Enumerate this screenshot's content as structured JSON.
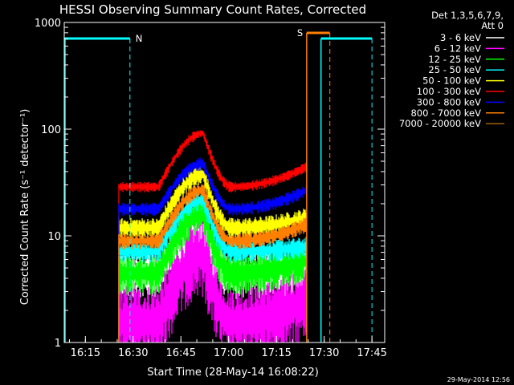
{
  "chart_data": {
    "type": "line",
    "title": "HESSI Observing Summary Count Rates, Corrected",
    "xlabel": "Start Time (28-May-14 16:08:22)",
    "ylabel": "Corrected Count Rate (s⁻¹ detector⁻¹)",
    "yscale": "log",
    "ylim": [
      1,
      1000
    ],
    "xlim": [
      "16:08:22",
      "17:49:00"
    ],
    "x_ticks": [
      "16:15",
      "16:30",
      "16:45",
      "17:00",
      "17:15",
      "17:30",
      "17:45"
    ],
    "y_ticks": [
      "1",
      "10",
      "100",
      "1000"
    ],
    "legend_header": [
      "Det 1,3,5,6,7,9,",
      "Att 0"
    ],
    "legend_position": "right, outside plot",
    "series": [
      {
        "name": "3 - 6 keV",
        "color": "#ffffff",
        "base": 4.5,
        "peak": 10.5,
        "end": 5.0,
        "noise": 0.18
      },
      {
        "name": "6 - 12 keV",
        "color": "#ff00ff",
        "base": 1.6,
        "peak": 7.0,
        "end": 2.6,
        "noise": 0.3
      },
      {
        "name": "12 - 25 keV",
        "color": "#00ff00",
        "base": 4.5,
        "peak": 17.0,
        "end": 6.0,
        "noise": 0.15
      },
      {
        "name": "25 - 50 keV",
        "color": "#00ffff",
        "base": 7.2,
        "peak": 22.0,
        "end": 8.0,
        "noise": 0.08
      },
      {
        "name": "50 - 100 keV",
        "color": "#ffff00",
        "base": 12.0,
        "peak": 38.0,
        "end": 15.0,
        "noise": 0.08
      },
      {
        "name": "100 - 300 keV",
        "color": "#ff0000",
        "base": 29.0,
        "peak": 92.0,
        "end": 45.0,
        "noise": 0.04
      },
      {
        "name": "300 - 800 keV",
        "color": "#0000ff",
        "base": 18.0,
        "peak": 48.0,
        "end": 27.0,
        "noise": 0.05
      },
      {
        "name": "800 - 7000 keV",
        "color": "#ff8000",
        "base": 9.0,
        "peak": 27.0,
        "end": 13.0,
        "noise": 0.06
      },
      {
        "name": "7000 - 20000 keV",
        "color": "#a06000",
        "base": null,
        "peak": null,
        "end": null,
        "noise": 0
      }
    ],
    "time_model": {
      "data_start": "16:25:30",
      "rise_start": "16:38:00",
      "peak": "16:52:00",
      "fall_end": "17:01:00",
      "data_end": "17:24:30"
    },
    "spacecraft_night": [
      {
        "label": "N",
        "start": "16:08:22",
        "end": "16:29:00"
      },
      {
        "label": "",
        "start": "17:29:00",
        "end": "17:45:00"
      }
    ],
    "saa": [
      {
        "label": "S",
        "start": "17:24:30",
        "end": "17:29:00"
      }
    ],
    "colors": {
      "night": "#00ffff",
      "saa": "#ff8000",
      "axes": "#ffffff",
      "background": "#000000"
    }
  },
  "timestamp": "29-May-2014 12:56"
}
